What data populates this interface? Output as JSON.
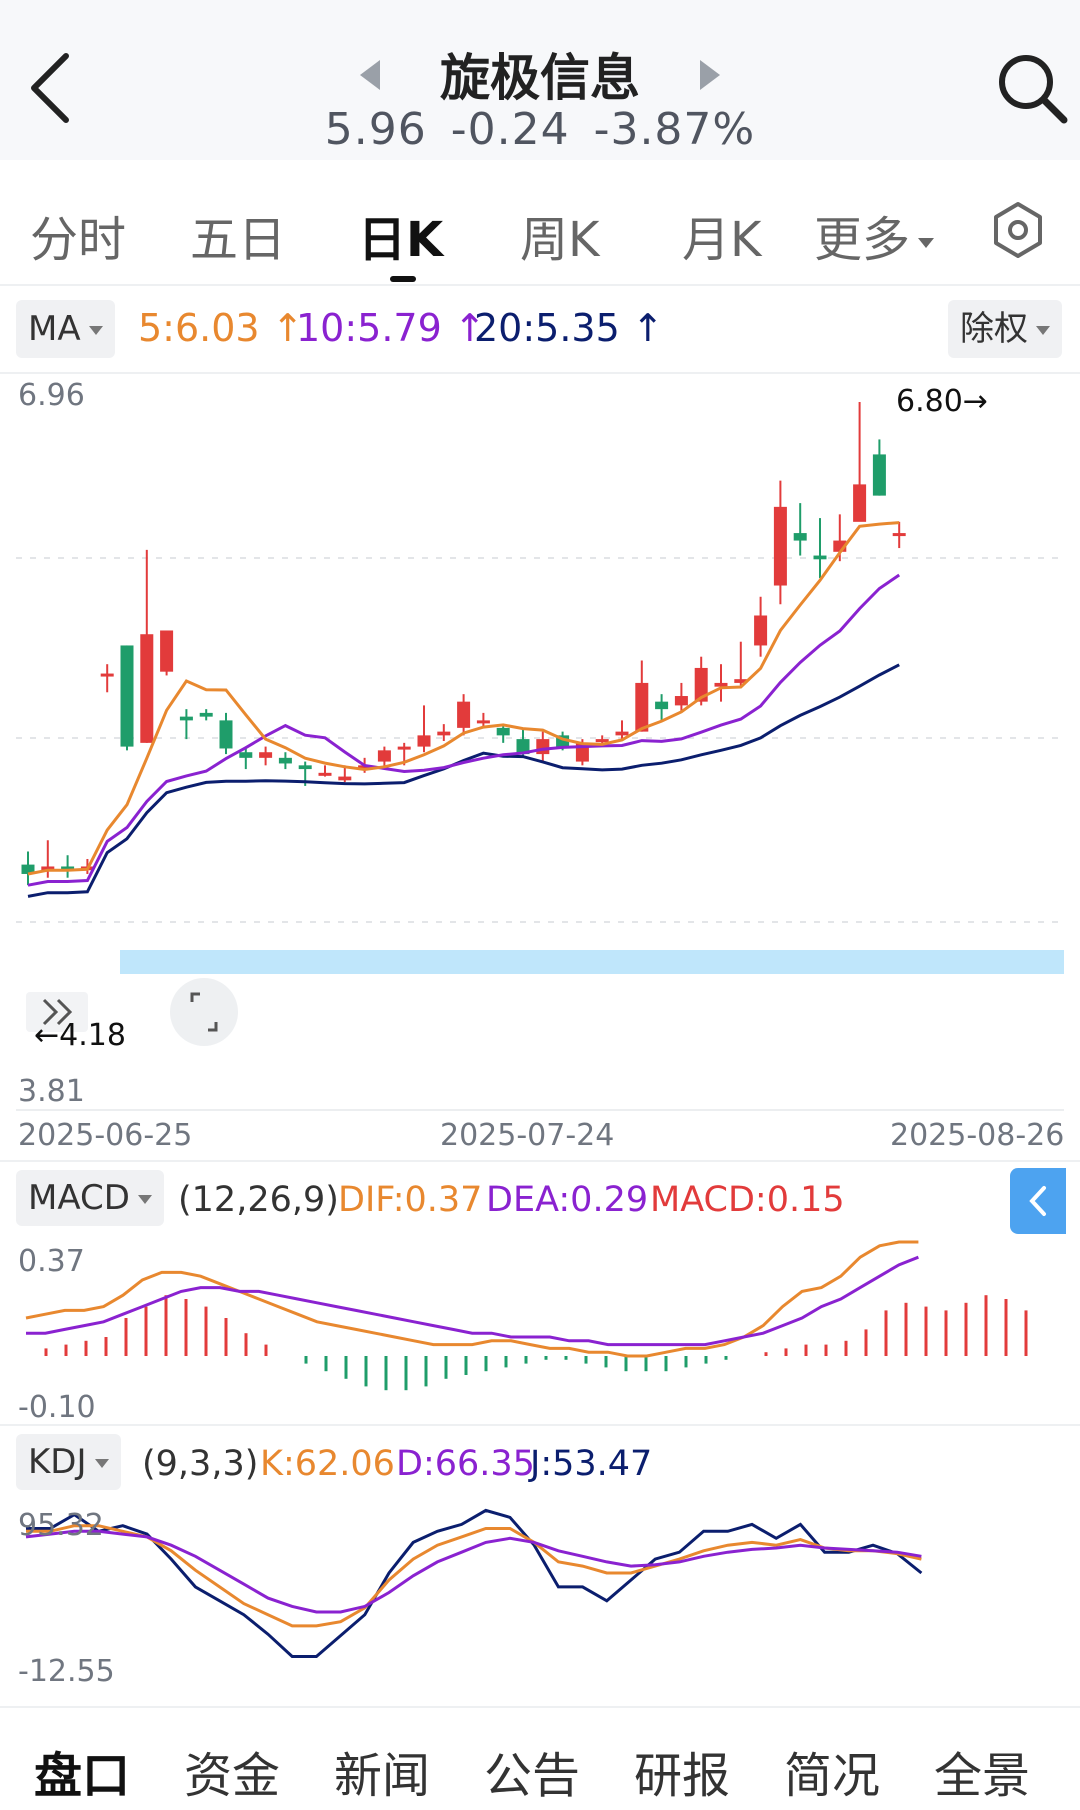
{
  "header": {
    "title": "旋极信息",
    "price": "5.96",
    "change": "-0.24",
    "change_pct": "-3.87%"
  },
  "tabs": {
    "items": [
      "分时",
      "五日",
      "日K",
      "周K",
      "月K",
      "更多"
    ],
    "active": "日K"
  },
  "ma": {
    "selector": "MA",
    "ma5": "5:6.03",
    "ma10": "10:5.79",
    "ma20": "20:5.35",
    "adjust": "除权",
    "colors": {
      "ma5": "#e8882f",
      "ma10": "#8a22d0",
      "ma20": "#0b1e6e"
    }
  },
  "kchart": {
    "ymax_label": "6.96",
    "ymin_label": "3.81",
    "high_label": "6.80",
    "low_label": "4.18",
    "dates": [
      "2025-06-25",
      "2025-07-24",
      "2025-08-26"
    ],
    "up_color": "#e23b3b",
    "down_color": "#1f9d6a"
  },
  "macd": {
    "selector": "MACD",
    "params": "(12,26,9)",
    "dif": "DIF:0.37",
    "dea": "DEA:0.29",
    "macd": "MACD:0.15",
    "ymax_label": "0.37",
    "ymin_label": "-0.10"
  },
  "kdj": {
    "selector": "KDJ",
    "params": "(9,3,3)",
    "k": "K:62.06",
    "d": "D:66.35",
    "j": "J:53.47",
    "ymax_label": "95.32",
    "ymin_label": "-12.55"
  },
  "bottom_nav": [
    "盘口",
    "资金",
    "新闻",
    "公告",
    "研报",
    "简况",
    "全景"
  ],
  "icons": {
    "back": "chevron-left-icon",
    "search": "search-icon",
    "settings": "hexagon-settings-icon",
    "expand": "expand-icon",
    "collapse": "double-chevron-icon"
  }
}
